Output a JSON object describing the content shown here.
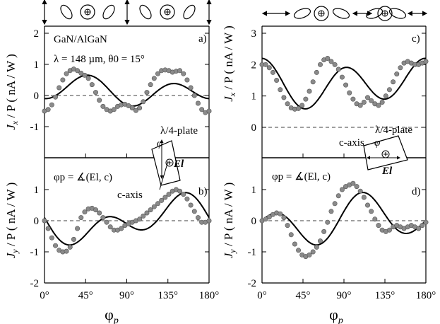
{
  "chart_data": [
    {
      "panel": "a)",
      "type": "scatter+line",
      "material": "GaN/AlGaN",
      "params": "λ = 148 µm, θ0 = 15°",
      "ylabel_pre": "J",
      "ylabel_sub": "x",
      "ylabel_post": " / P  ( nA / W )",
      "yticks": [
        "2",
        "1",
        "0",
        "-1"
      ],
      "ylim": [
        -2,
        2
      ],
      "xlim": [
        0,
        180
      ],
      "fit": {
        "offset": 0.15,
        "a2": 0.1,
        "b2": 0.15,
        "a4": -0.35,
        "b4": -0.1
      },
      "noise": 0.05,
      "x": [
        0,
        4,
        8,
        12,
        16,
        20,
        24,
        28,
        32,
        36,
        40,
        44,
        48,
        52,
        56,
        60,
        64,
        68,
        72,
        76,
        80,
        84,
        88,
        92,
        96,
        100,
        104,
        108,
        112,
        116,
        120,
        124,
        128,
        132,
        136,
        140,
        144,
        148,
        152,
        156,
        160,
        164,
        168,
        172,
        176,
        180
      ],
      "y": [
        -0.5,
        -0.45,
        -0.3,
        -0.05,
        0.25,
        0.5,
        0.7,
        0.8,
        0.85,
        0.8,
        0.72,
        0.65,
        0.55,
        0.35,
        0.1,
        -0.15,
        -0.35,
        -0.45,
        -0.5,
        -0.45,
        -0.35,
        -0.3,
        -0.28,
        -0.33,
        -0.4,
        -0.48,
        -0.4,
        -0.2,
        0.1,
        0.35,
        0.55,
        0.7,
        0.8,
        0.82,
        0.8,
        0.75,
        0.78,
        0.8,
        0.7,
        0.5,
        0.25,
        0.0,
        -0.25,
        -0.45,
        -0.55,
        -0.5
      ],
      "annotation": "λ/4-plate"
    },
    {
      "panel": "b)",
      "type": "scatter+line",
      "ylabel_pre": "J",
      "ylabel_sub": "y",
      "ylabel_post": " / P  ( nA / W )",
      "yticks": [
        "1",
        "0",
        "-1",
        "-2"
      ],
      "ylim": [
        -2,
        1.5
      ],
      "xlim": [
        0,
        180
      ],
      "fit": {
        "offset": 0,
        "a2": 0.1,
        "b2": -0.45,
        "a4": 0,
        "b4": -0.5
      },
      "noise": 0.04,
      "x": [
        0,
        4,
        8,
        12,
        16,
        20,
        24,
        28,
        32,
        36,
        40,
        44,
        48,
        52,
        56,
        60,
        64,
        68,
        72,
        76,
        80,
        84,
        88,
        92,
        96,
        100,
        104,
        108,
        112,
        116,
        120,
        124,
        128,
        132,
        136,
        140,
        144,
        148,
        152,
        156,
        160,
        164,
        168,
        172,
        176,
        180
      ],
      "y": [
        0.0,
        -0.25,
        -0.55,
        -0.8,
        -0.95,
        -1.0,
        -0.98,
        -0.85,
        -0.6,
        -0.25,
        0.1,
        0.28,
        0.38,
        0.4,
        0.35,
        0.25,
        0.1,
        -0.05,
        -0.2,
        -0.3,
        -0.3,
        -0.25,
        -0.15,
        -0.1,
        -0.05,
        0.0,
        0.05,
        0.15,
        0.25,
        0.35,
        0.45,
        0.55,
        0.65,
        0.75,
        0.85,
        0.95,
        1.0,
        0.95,
        0.85,
        0.7,
        0.5,
        0.3,
        0.1,
        -0.05,
        -0.05,
        0.0
      ],
      "polarization_label": "φp = ∡(El, c)",
      "axis_label": "c-axis",
      "vector_label": "El"
    },
    {
      "panel": "c)",
      "type": "scatter+line",
      "ylabel_pre": "J",
      "ylabel_sub": "x",
      "ylabel_post": " / P  ( nA / W )",
      "yticks": [
        "3",
        "2",
        "1",
        "0",
        "-1"
      ],
      "ylim": [
        -1,
        3
      ],
      "xlim": [
        0,
        180
      ],
      "fit": {
        "offset": 1.4,
        "a2": 0.15,
        "b2": -0.15,
        "a4": 0.65,
        "b4": 0.05
      },
      "noise": 0.06,
      "x": [
        0,
        4,
        8,
        12,
        16,
        20,
        24,
        28,
        32,
        36,
        40,
        44,
        48,
        52,
        56,
        60,
        64,
        68,
        72,
        76,
        80,
        84,
        88,
        92,
        96,
        100,
        104,
        108,
        112,
        116,
        120,
        124,
        128,
        132,
        136,
        140,
        144,
        148,
        152,
        156,
        160,
        164,
        168,
        172,
        176,
        180
      ],
      "y": [
        2.0,
        2.0,
        1.9,
        1.75,
        1.5,
        1.2,
        0.95,
        0.75,
        0.62,
        0.58,
        0.6,
        0.7,
        0.9,
        1.15,
        1.45,
        1.75,
        2.0,
        2.15,
        2.2,
        2.1,
        2.0,
        1.85,
        1.6,
        1.35,
        1.1,
        0.9,
        0.75,
        0.7,
        0.8,
        0.95,
        0.85,
        0.75,
        0.7,
        0.8,
        1.0,
        1.2,
        1.45,
        1.7,
        1.9,
        2.05,
        2.1,
        2.05,
        2.0,
        2.0,
        2.05,
        2.1
      ],
      "annotation": "λ/4-plate"
    },
    {
      "panel": "d)",
      "type": "scatter+line",
      "ylabel_pre": "J",
      "ylabel_sub": "y",
      "ylabel_post": " / P  ( nA / W )",
      "yticks": [
        "1",
        "0",
        "-1",
        "-2"
      ],
      "ylim": [
        -2,
        1.5
      ],
      "xlim": [
        0,
        180
      ],
      "fit": {
        "offset": 0,
        "a2": -0.15,
        "b2": -0.35,
        "a4": 0.15,
        "b4": 0.55
      },
      "noise": 0.05,
      "x": [
        0,
        4,
        8,
        12,
        16,
        20,
        24,
        28,
        32,
        36,
        40,
        44,
        48,
        52,
        56,
        60,
        64,
        68,
        72,
        76,
        80,
        84,
        88,
        92,
        96,
        100,
        104,
        108,
        112,
        116,
        120,
        124,
        128,
        132,
        136,
        140,
        144,
        148,
        152,
        156,
        160,
        164,
        168,
        172,
        176,
        180
      ],
      "y": [
        0.0,
        0.05,
        0.12,
        0.2,
        0.25,
        0.22,
        0.1,
        -0.15,
        -0.45,
        -0.75,
        -0.95,
        -1.1,
        -1.15,
        -1.1,
        -1.0,
        -0.85,
        -0.65,
        -0.35,
        -0.05,
        0.3,
        0.55,
        0.8,
        1.0,
        1.1,
        1.15,
        1.2,
        1.1,
        0.95,
        0.75,
        0.5,
        0.3,
        0.05,
        -0.15,
        -0.3,
        -0.35,
        -0.3,
        -0.2,
        -0.15,
        -0.2,
        -0.25,
        -0.2,
        -0.15,
        -0.2,
        -0.25,
        -0.15,
        -0.05
      ],
      "polarization_label": "φp = ∡(El, c)",
      "axis_label": "c-axis",
      "vector_label": "El"
    }
  ],
  "x_axis": {
    "label": "φp",
    "ticks": [
      "0°",
      "45°",
      "90°",
      "135°",
      "180°"
    ]
  }
}
